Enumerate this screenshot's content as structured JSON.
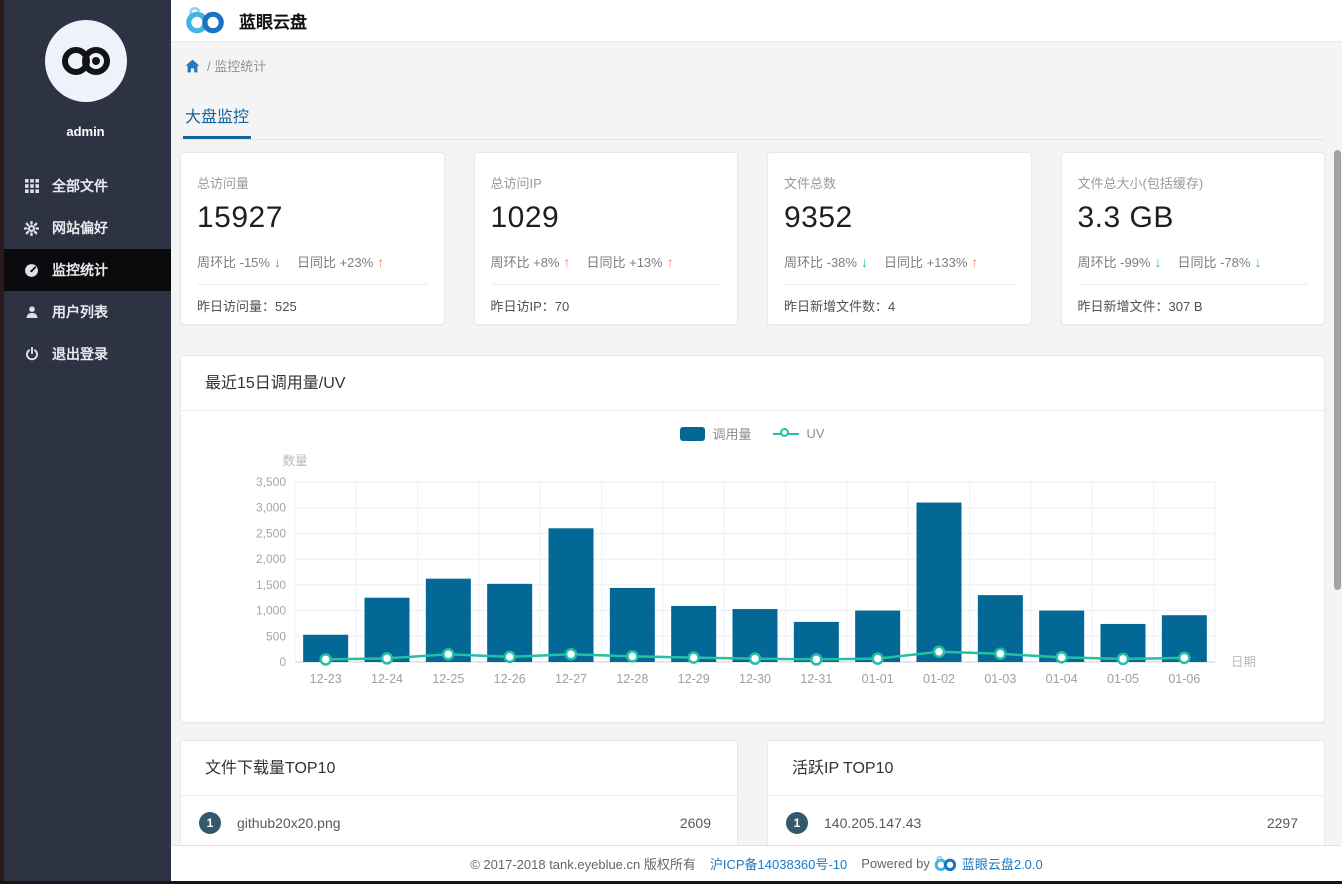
{
  "app": {
    "title": "蓝眼云盘"
  },
  "sidebar": {
    "username": "admin",
    "items": [
      {
        "label": "全部文件",
        "icon": "grid-icon",
        "active": false
      },
      {
        "label": "网站偏好",
        "icon": "gear-icon",
        "active": false
      },
      {
        "label": "监控统计",
        "icon": "dashboard-icon",
        "active": true
      },
      {
        "label": "用户列表",
        "icon": "user-icon",
        "active": false
      },
      {
        "label": "退出登录",
        "icon": "power-icon",
        "active": false
      }
    ]
  },
  "breadcrumb": {
    "text": "/ 监控统计"
  },
  "tabs": {
    "dashboard": "大盘监控"
  },
  "stat_cards": [
    {
      "label": "总访问量",
      "value": "15927",
      "week_label": "周环比 -15%",
      "week_dir": "down",
      "day_label": "日同比 +23%",
      "day_dir": "up",
      "foot_label": "昨日访问量：",
      "foot_value": "525"
    },
    {
      "label": "总访问IP",
      "value": "1029",
      "week_label": "周环比 +8%",
      "week_dir": "up",
      "day_label": "日同比 +13%",
      "day_dir": "up",
      "foot_label": "昨日访IP：",
      "foot_value": "70"
    },
    {
      "label": "文件总数",
      "value": "9352",
      "week_label": "周环比 -38%",
      "week_dir": "down",
      "day_label": "日同比 +133%",
      "day_dir": "up",
      "foot_label": "昨日新增文件数：",
      "foot_value": "4"
    },
    {
      "label": "文件总大小(包括缓存)",
      "value": "3.3 GB",
      "week_label": "周环比 -99%",
      "week_dir": "down",
      "day_label": "日同比 -78%",
      "day_dir": "down",
      "foot_label": "昨日新增文件：",
      "foot_value": "307 B"
    }
  ],
  "chart_card": {
    "title": "最近15日调用量/UV"
  },
  "chart_data": {
    "type": "bar",
    "title": "最近15日调用量/UV",
    "categories": [
      "12-23",
      "12-24",
      "12-25",
      "12-26",
      "12-27",
      "12-28",
      "12-29",
      "12-30",
      "12-31",
      "01-01",
      "01-02",
      "01-03",
      "01-04",
      "01-05",
      "01-06"
    ],
    "series": [
      {
        "name": "调用量",
        "type": "bar",
        "color": "#036895",
        "values": [
          530,
          1250,
          1620,
          1520,
          2600,
          1440,
          1090,
          1030,
          780,
          1000,
          3100,
          1300,
          1000,
          740,
          910
        ]
      },
      {
        "name": "UV",
        "type": "line",
        "color": "#24bfa5",
        "values": [
          50,
          70,
          150,
          100,
          150,
          110,
          85,
          65,
          50,
          65,
          200,
          160,
          90,
          60,
          80
        ]
      }
    ],
    "xlabel": "日期",
    "ylabel": "数量",
    "ylim": [
      0,
      3500
    ],
    "ytick_step": 500,
    "grid": true,
    "legend_position": "top-center"
  },
  "top_lists": [
    {
      "title": "文件下载量TOP10",
      "rows": [
        {
          "rank": "1",
          "name": "github20x20.png",
          "value": "2609"
        }
      ]
    },
    {
      "title": "活跃IP TOP10",
      "rows": [
        {
          "rank": "1",
          "name": "140.205.147.43",
          "value": "2297"
        }
      ]
    }
  ],
  "footer": {
    "copyright": "© 2017-2018 tank.eyeblue.cn 版权所有",
    "icp": "沪ICP备14038360号-10",
    "powered_by": "Powered by",
    "product": "蓝眼云盘2.0.0"
  },
  "colors": {
    "bar_blue": "#036895",
    "line_teal": "#24bfa5",
    "trend_up": "#f87e64",
    "trend_down": "#22b79a",
    "tab_blue": "#16649c",
    "link_blue": "#1a7ac4",
    "sidebar_bg": "#2e3344",
    "sidebar_active_bg": "#0b0b0e",
    "rank_badge": "#33596d"
  }
}
